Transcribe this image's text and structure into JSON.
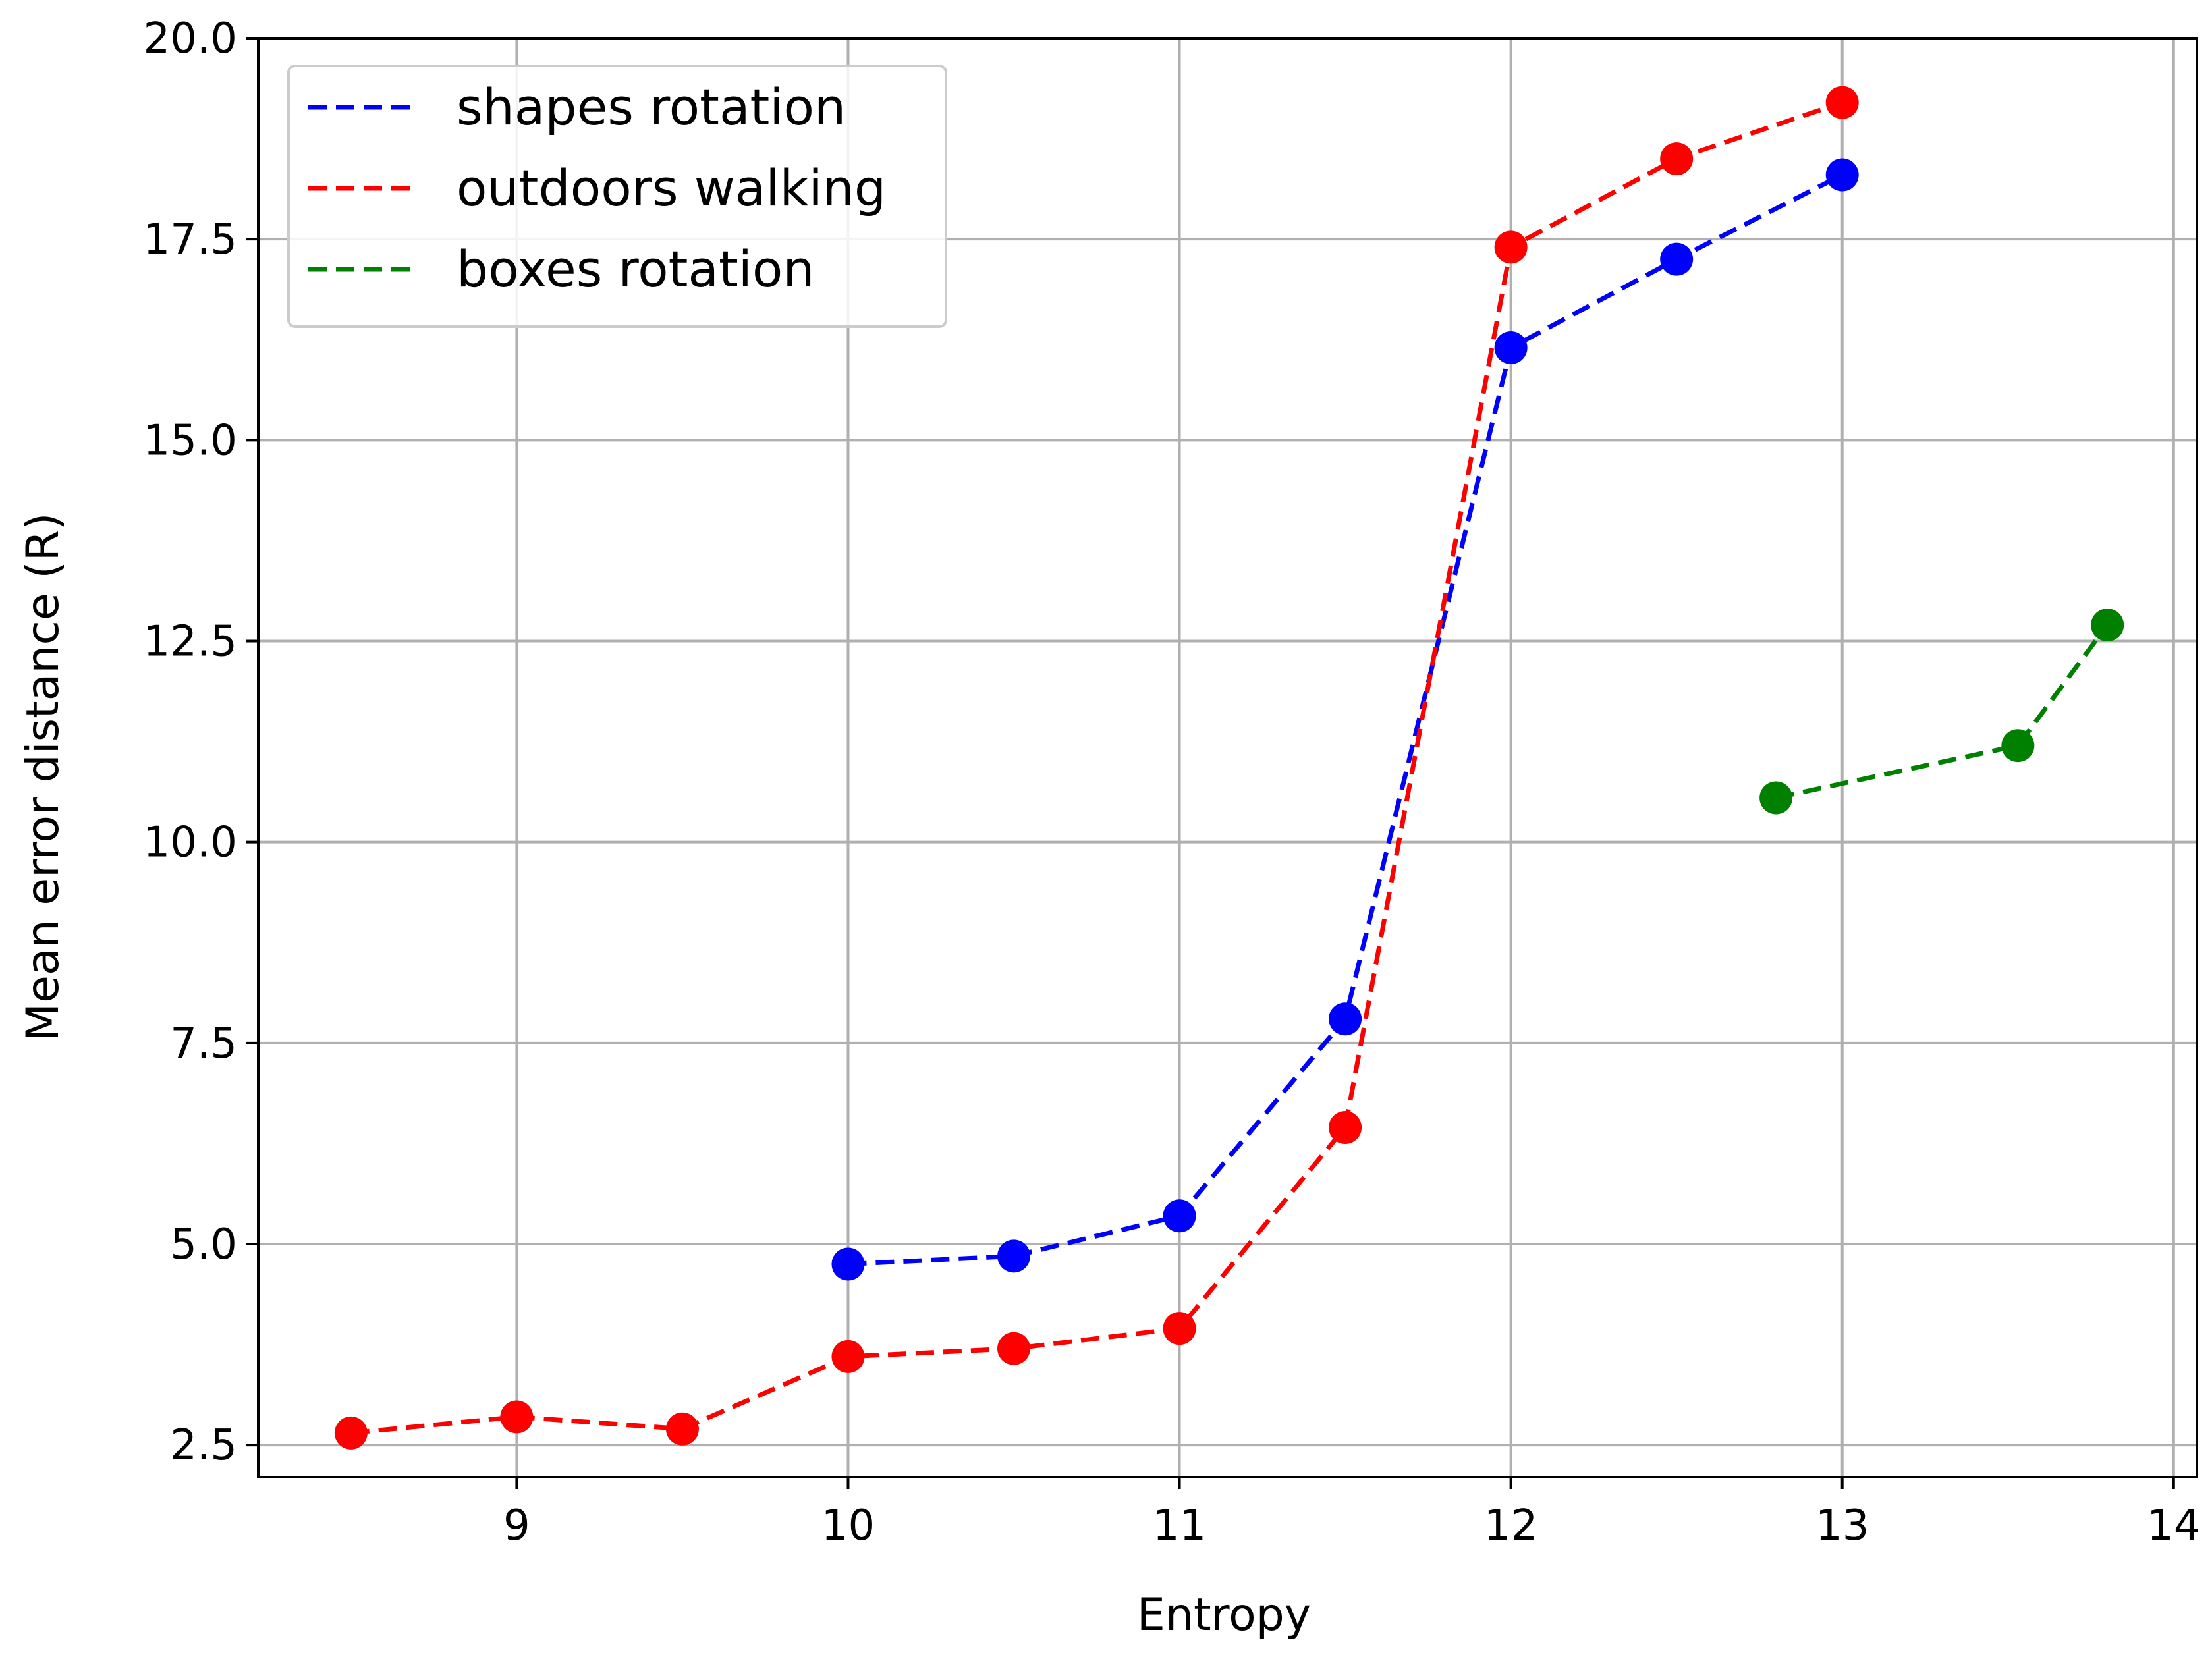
{
  "chart_data": {
    "type": "line",
    "title": "",
    "xlabel": "Entropy",
    "ylabel": "Mean error distance (R)",
    "xlim": [
      8.22,
      14.07
    ],
    "ylim": [
      2.1,
      20.0
    ],
    "xticks": [
      9,
      10,
      11,
      12,
      13,
      14
    ],
    "xtick_labels": [
      "9",
      "10",
      "11",
      "12",
      "13",
      "14"
    ],
    "yticks": [
      2.5,
      5.0,
      7.5,
      10.0,
      12.5,
      15.0,
      17.5,
      20.0
    ],
    "ytick_labels": [
      "2.5",
      "5.0",
      "7.5",
      "10.0",
      "12.5",
      "15.0",
      "17.5",
      "20.0"
    ],
    "grid": true,
    "legend_position": "top-left",
    "series": [
      {
        "name": "shapes rotation",
        "color": "#0000ff",
        "linestyle": "dashed",
        "marker": "circle",
        "x": [
          10,
          10.5,
          11,
          11.5,
          12,
          12.5,
          13
        ],
        "y": [
          4.75,
          4.85,
          5.35,
          7.8,
          16.15,
          17.25,
          18.3
        ]
      },
      {
        "name": "outdoors walking",
        "color": "#ff0000",
        "linestyle": "dashed",
        "marker": "circle",
        "x": [
          8.5,
          9,
          9.5,
          10,
          10.5,
          11,
          11.5,
          12,
          12.5,
          13
        ],
        "y": [
          2.65,
          2.85,
          2.7,
          3.6,
          3.7,
          3.95,
          6.45,
          17.4,
          18.5,
          19.2
        ]
      },
      {
        "name": "boxes rotation",
        "color": "#008000",
        "linestyle": "dashed",
        "marker": "circle",
        "x": [
          12.8,
          13.53,
          13.8
        ],
        "y": [
          10.55,
          11.2,
          12.7
        ]
      }
    ]
  }
}
